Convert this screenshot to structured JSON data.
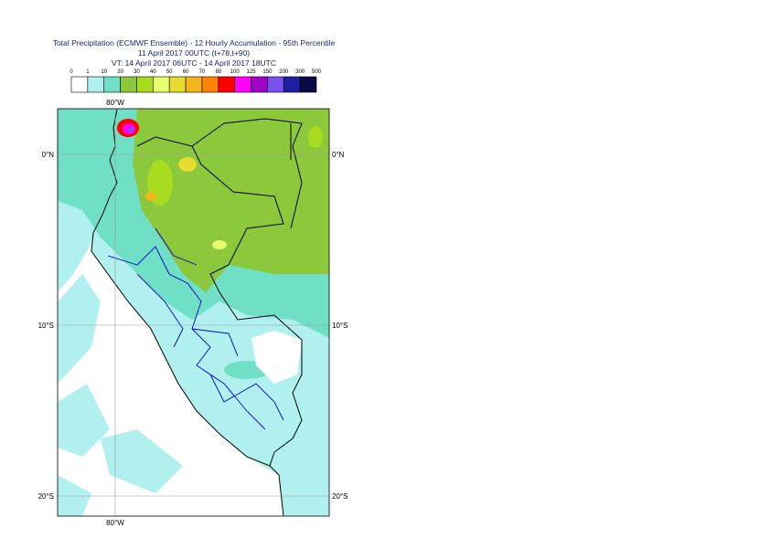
{
  "header": {
    "title_lines": [
      "Total Precipitation (ECMWF Ensemble) - 12 Hourly Accumulation - 95th Percentile",
      "11 April 2017 00UTC (t+78,t+90)",
      "VT: 14 April 2017 06UTC - 14 April 2017 18UTC"
    ]
  },
  "legend": {
    "labels": [
      0,
      1,
      10,
      20,
      30,
      40,
      50,
      60,
      70,
      80,
      100,
      125,
      150,
      200,
      300,
      500
    ],
    "colors": [
      "#ffffff",
      "#b0f0ee",
      "#6fe0c6",
      "#8cc83c",
      "#a8dc1e",
      "#e6ff6e",
      "#e6dc32",
      "#f5b41e",
      "#ff8200",
      "#ff0000",
      "#ff00ff",
      "#a000c8",
      "#7850f0",
      "#1e1ea0",
      "#0a0a46"
    ]
  },
  "map": {
    "lat_labels": [
      "0°N",
      "10°S",
      "20°S"
    ],
    "lon_label": "80°W"
  }
}
